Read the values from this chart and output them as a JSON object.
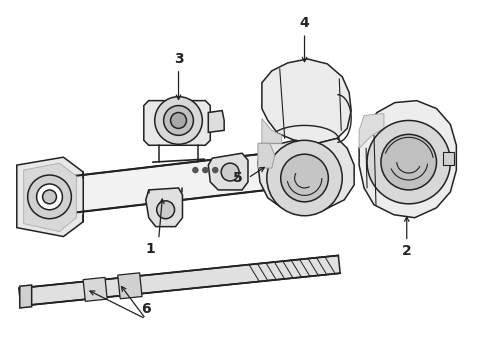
{
  "bg_color": "#ffffff",
  "line_color": "#222222",
  "line_width": 1.1,
  "fig_width": 4.9,
  "fig_height": 3.6,
  "dpi": 100,
  "label_fontsize": 10,
  "label_fontweight": "bold"
}
